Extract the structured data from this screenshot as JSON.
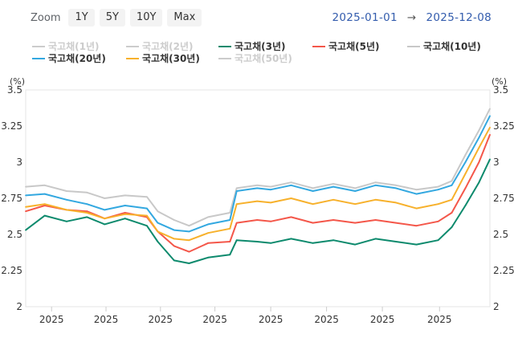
{
  "zoom": {
    "label": "Zoom",
    "buttons": [
      "1Y",
      "5Y",
      "10Y",
      "Max"
    ]
  },
  "range": {
    "from": "2025-01-01",
    "arrow": "→",
    "to": "2025-12-08"
  },
  "colors": {
    "background": "#ffffff",
    "plot_border": "#e6e6e6",
    "axis_text": "#333333",
    "range_text": "#335cad"
  },
  "chart_data": {
    "type": "line",
    "unit_label": "(%)",
    "ylim": [
      2.0,
      3.5
    ],
    "y_ticks": [
      2.0,
      2.25,
      2.5,
      2.75,
      3.0,
      3.25,
      3.5
    ],
    "y_tick_labels_left": [
      "2",
      "2.25",
      "2.5",
      "2.75",
      "3",
      "3.25",
      "3.5"
    ],
    "y_tick_labels_right": [
      "2",
      "2.25",
      "2.5",
      "2.75",
      "3",
      "3.25",
      "3.5"
    ],
    "x_range": [
      "2025-01-01",
      "2025-12-08"
    ],
    "x_ticks": [
      "2025-01-20",
      "2025-03-01",
      "2025-04-10",
      "2025-05-20",
      "2025-06-30",
      "2025-08-10",
      "2025-09-20",
      "2025-11-01"
    ],
    "x_tick_labels": [
      "2025",
      "2025",
      "2025",
      "2025",
      "2025",
      "2025",
      "2025",
      "2025"
    ],
    "grid": false,
    "legend_position": "top",
    "series": [
      {
        "name": "국고채(1년)",
        "color": "#cfcfcf",
        "visible": false,
        "x": [],
        "values": []
      },
      {
        "name": "국고채(2년)",
        "color": "#cfcfcf",
        "visible": false,
        "x": [],
        "values": []
      },
      {
        "name": "국고채(3년)",
        "color": "#0d8a6d",
        "visible": true,
        "x": [
          "2025-01-01",
          "2025-01-15",
          "2025-01-31",
          "2025-02-15",
          "2025-02-28",
          "2025-03-15",
          "2025-03-31",
          "2025-04-08",
          "2025-04-20",
          "2025-05-01",
          "2025-05-15",
          "2025-05-31",
          "2025-06-05",
          "2025-06-20",
          "2025-06-30",
          "2025-07-15",
          "2025-07-31",
          "2025-08-15",
          "2025-08-31",
          "2025-09-15",
          "2025-09-30",
          "2025-10-15",
          "2025-10-31",
          "2025-11-10",
          "2025-11-20",
          "2025-11-30",
          "2025-12-08"
        ],
        "values": [
          2.53,
          2.63,
          2.59,
          2.62,
          2.57,
          2.61,
          2.56,
          2.45,
          2.32,
          2.3,
          2.34,
          2.36,
          2.46,
          2.45,
          2.44,
          2.47,
          2.44,
          2.46,
          2.43,
          2.47,
          2.45,
          2.43,
          2.46,
          2.55,
          2.7,
          2.86,
          3.02
        ]
      },
      {
        "name": "국고채(5년)",
        "color": "#f4574a",
        "visible": true,
        "x": [
          "2025-01-01",
          "2025-01-15",
          "2025-01-31",
          "2025-02-15",
          "2025-02-28",
          "2025-03-15",
          "2025-03-31",
          "2025-04-08",
          "2025-04-20",
          "2025-05-01",
          "2025-05-15",
          "2025-05-31",
          "2025-06-05",
          "2025-06-20",
          "2025-06-30",
          "2025-07-15",
          "2025-07-31",
          "2025-08-15",
          "2025-08-31",
          "2025-09-15",
          "2025-09-30",
          "2025-10-15",
          "2025-10-31",
          "2025-11-10",
          "2025-11-20",
          "2025-11-30",
          "2025-12-08"
        ],
        "values": [
          2.66,
          2.7,
          2.67,
          2.66,
          2.61,
          2.65,
          2.62,
          2.52,
          2.42,
          2.38,
          2.44,
          2.45,
          2.58,
          2.6,
          2.59,
          2.62,
          2.58,
          2.6,
          2.58,
          2.6,
          2.58,
          2.56,
          2.59,
          2.65,
          2.82,
          3.0,
          3.19
        ]
      },
      {
        "name": "국고채(10년)",
        "color": "#c8c8c8",
        "visible": true,
        "x": [
          "2025-01-01",
          "2025-01-15",
          "2025-01-31",
          "2025-02-15",
          "2025-02-28",
          "2025-03-15",
          "2025-03-31",
          "2025-04-08",
          "2025-04-20",
          "2025-05-01",
          "2025-05-15",
          "2025-05-31",
          "2025-06-05",
          "2025-06-20",
          "2025-06-30",
          "2025-07-15",
          "2025-07-31",
          "2025-08-15",
          "2025-08-31",
          "2025-09-15",
          "2025-09-30",
          "2025-10-15",
          "2025-10-31",
          "2025-11-10",
          "2025-11-20",
          "2025-11-30",
          "2025-12-08"
        ],
        "values": [
          2.83,
          2.84,
          2.8,
          2.79,
          2.75,
          2.77,
          2.76,
          2.66,
          2.6,
          2.56,
          2.62,
          2.65,
          2.82,
          2.84,
          2.83,
          2.86,
          2.82,
          2.85,
          2.82,
          2.86,
          2.84,
          2.81,
          2.83,
          2.87,
          3.05,
          3.22,
          3.37
        ]
      },
      {
        "name": "국고채(20년)",
        "color": "#33a8e0",
        "visible": true,
        "x": [
          "2025-01-01",
          "2025-01-15",
          "2025-01-31",
          "2025-02-15",
          "2025-02-28",
          "2025-03-15",
          "2025-03-31",
          "2025-04-08",
          "2025-04-20",
          "2025-05-01",
          "2025-05-15",
          "2025-05-31",
          "2025-06-05",
          "2025-06-20",
          "2025-06-30",
          "2025-07-15",
          "2025-07-31",
          "2025-08-15",
          "2025-08-31",
          "2025-09-15",
          "2025-09-30",
          "2025-10-15",
          "2025-10-31",
          "2025-11-10",
          "2025-11-20",
          "2025-11-30",
          "2025-12-08"
        ],
        "values": [
          2.77,
          2.78,
          2.74,
          2.71,
          2.67,
          2.7,
          2.68,
          2.58,
          2.53,
          2.52,
          2.57,
          2.6,
          2.8,
          2.82,
          2.81,
          2.84,
          2.8,
          2.83,
          2.8,
          2.84,
          2.82,
          2.78,
          2.81,
          2.84,
          3.0,
          3.17,
          3.32
        ]
      },
      {
        "name": "국고채(30년)",
        "color": "#f7b12c",
        "visible": true,
        "x": [
          "2025-01-01",
          "2025-01-15",
          "2025-01-31",
          "2025-02-15",
          "2025-02-28",
          "2025-03-15",
          "2025-03-31",
          "2025-04-08",
          "2025-04-20",
          "2025-05-01",
          "2025-05-15",
          "2025-05-31",
          "2025-06-05",
          "2025-06-20",
          "2025-06-30",
          "2025-07-15",
          "2025-07-31",
          "2025-08-15",
          "2025-08-31",
          "2025-09-15",
          "2025-09-30",
          "2025-10-15",
          "2025-10-31",
          "2025-11-10",
          "2025-11-20",
          "2025-11-30",
          "2025-12-08"
        ],
        "values": [
          2.69,
          2.71,
          2.67,
          2.65,
          2.61,
          2.64,
          2.63,
          2.52,
          2.47,
          2.46,
          2.51,
          2.54,
          2.71,
          2.73,
          2.72,
          2.75,
          2.71,
          2.74,
          2.71,
          2.74,
          2.72,
          2.68,
          2.71,
          2.74,
          2.92,
          3.1,
          3.24
        ]
      },
      {
        "name": "국고채(50년)",
        "color": "#cfcfcf",
        "visible": false,
        "x": [],
        "values": []
      }
    ]
  }
}
